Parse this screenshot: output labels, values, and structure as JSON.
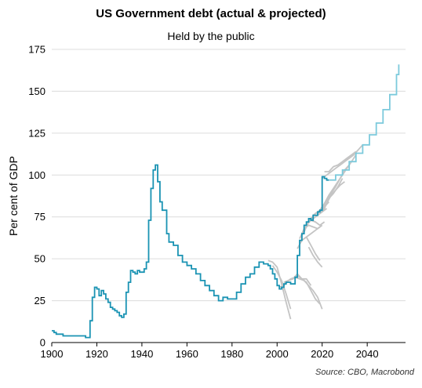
{
  "chart_data": {
    "type": "line",
    "title": "US Government debt (actual & projected)",
    "subtitle": "Held by the public",
    "xlabel": "",
    "ylabel": "Per cent of GDP",
    "source": "Source: CBO, Macrobond",
    "xlim": [
      1900,
      2057
    ],
    "ylim": [
      0,
      175
    ],
    "x_ticks": [
      1900,
      1920,
      1940,
      1960,
      1980,
      2000,
      2020,
      2040
    ],
    "y_ticks": [
      0,
      25,
      50,
      75,
      100,
      125,
      150,
      175
    ],
    "grid": "horizontal",
    "colors": {
      "actual": "#1a93b3",
      "projected": "#7ccadc",
      "past_projections": "#c4c4c4"
    },
    "series": [
      {
        "role": "actual",
        "x": [
          1900,
          1901,
          1902,
          1903,
          1905,
          1910,
          1915,
          1916,
          1917,
          1918,
          1919,
          1920,
          1921,
          1922,
          1923,
          1924,
          1925,
          1926,
          1927,
          1928,
          1929,
          1930,
          1931,
          1932,
          1933,
          1934,
          1935,
          1936,
          1937,
          1938,
          1939,
          1940,
          1941,
          1942,
          1943,
          1944,
          1945,
          1946,
          1947,
          1948,
          1949,
          1950,
          1951,
          1952,
          1954,
          1956,
          1958,
          1960,
          1962,
          1964,
          1966,
          1968,
          1970,
          1972,
          1974,
          1976,
          1978,
          1980,
          1982,
          1984,
          1986,
          1988,
          1990,
          1992,
          1993,
          1994,
          1995,
          1996,
          1997,
          1998,
          1999,
          2000,
          2001,
          2002,
          2003,
          2004,
          2005,
          2006,
          2007,
          2008,
          2009,
          2010,
          2011,
          2012,
          2013,
          2014,
          2015,
          2016,
          2017,
          2018,
          2019,
          2020,
          2021,
          2022,
          2023
        ],
        "y": [
          7,
          6,
          5,
          5,
          4,
          4,
          3,
          3,
          13,
          27,
          33,
          32,
          28,
          31,
          29,
          26,
          24,
          21,
          20,
          19,
          18,
          16,
          15,
          17,
          30,
          36,
          43,
          42,
          41,
          43,
          42,
          42,
          44,
          48,
          73,
          92,
          103,
          106,
          96,
          84,
          79,
          79,
          65,
          60,
          58,
          52,
          48,
          46,
          44,
          41,
          37,
          34,
          31,
          28,
          25,
          27,
          26,
          26,
          30,
          35,
          39,
          41,
          45,
          48,
          48,
          47,
          47,
          46,
          44,
          41,
          38,
          34,
          32,
          33,
          35,
          36,
          36,
          35,
          35,
          39,
          52,
          61,
          65,
          70,
          72,
          74,
          73,
          76,
          76,
          78,
          79,
          99,
          98,
          97,
          97
        ]
      },
      {
        "role": "projected",
        "x": [
          2023,
          2026,
          2029,
          2032,
          2035,
          2038,
          2041,
          2044,
          2047,
          2050,
          2053,
          2054
        ],
        "y": [
          97,
          100,
          103,
          108,
          113,
          118,
          124,
          131,
          139,
          148,
          160,
          166
        ]
      },
      {
        "role": "past_projection",
        "x": [
          1996,
          1998,
          2000,
          2002,
          2004,
          2006
        ],
        "y": [
          49,
          48,
          45,
          35,
          24,
          14
        ]
      },
      {
        "role": "past_projection",
        "x": [
          1998,
          2000,
          2002,
          2004,
          2006
        ],
        "y": [
          46,
          42,
          37,
          29,
          20
        ]
      },
      {
        "role": "past_projection",
        "x": [
          2001,
          2003,
          2005,
          2007,
          2009,
          2011,
          2013,
          2015,
          2017,
          2019
        ],
        "y": [
          33,
          34,
          37,
          38,
          40,
          38,
          36,
          31,
          26,
          23
        ]
      },
      {
        "role": "past_projection",
        "x": [
          2002,
          2004,
          2006,
          2008,
          2010,
          2012,
          2014,
          2016,
          2018,
          2020
        ],
        "y": [
          33,
          36,
          38,
          39,
          38,
          37,
          34,
          31,
          27,
          20
        ]
      },
      {
        "role": "past_projection",
        "x": [
          2003,
          2005,
          2007,
          2009,
          2011,
          2013,
          2015
        ],
        "y": [
          36,
          37,
          38,
          41,
          38,
          38,
          34
        ]
      },
      {
        "role": "past_projection",
        "x": [
          2009,
          2011,
          2013,
          2015,
          2017,
          2019
        ],
        "y": [
          56,
          61,
          63,
          65,
          67,
          69
        ]
      },
      {
        "role": "past_projection",
        "x": [
          2010,
          2012,
          2014,
          2016,
          2018,
          2020
        ],
        "y": [
          62,
          68,
          70,
          69,
          68,
          70
        ]
      },
      {
        "role": "past_projection",
        "x": [
          2011,
          2013,
          2015,
          2017,
          2019,
          2021
        ],
        "y": [
          64,
          70,
          73,
          72,
          70,
          72
        ]
      },
      {
        "role": "past_projection",
        "x": [
          2012,
          2014,
          2016,
          2018,
          2020,
          2022
        ],
        "y": [
          66,
          72,
          74,
          76,
          78,
          80
        ]
      },
      {
        "role": "past_projection",
        "x": [
          2013,
          2015,
          2017,
          2019,
          2021,
          2023
        ],
        "y": [
          70,
          74,
          77,
          79,
          81,
          84
        ]
      },
      {
        "role": "past_projection",
        "x": [
          2013,
          2015,
          2017,
          2019
        ],
        "y": [
          63,
          58,
          53,
          49
        ]
      },
      {
        "role": "past_projection",
        "x": [
          2014,
          2016,
          2018,
          2020
        ],
        "y": [
          57,
          52,
          48,
          45
        ]
      },
      {
        "role": "past_projection",
        "x": [
          2015,
          2017,
          2019,
          2021,
          2023,
          2025,
          2027,
          2029
        ],
        "y": [
          74,
          77,
          78,
          80,
          86,
          89,
          93,
          98
        ]
      },
      {
        "role": "past_projection",
        "x": [
          2016,
          2018,
          2020,
          2022,
          2024,
          2026,
          2028,
          2030
        ],
        "y": [
          76,
          78,
          80,
          83,
          88,
          91,
          94,
          96
        ]
      },
      {
        "role": "past_projection",
        "x": [
          2018,
          2020,
          2022,
          2024,
          2026,
          2028,
          2030,
          2032
        ],
        "y": [
          77,
          80,
          85,
          89,
          93,
          98,
          103,
          106
        ]
      },
      {
        "role": "past_projection",
        "x": [
          2019,
          2021,
          2023,
          2025,
          2027,
          2029,
          2031,
          2033,
          2035
        ],
        "y": [
          79,
          83,
          88,
          92,
          96,
          100,
          104,
          108,
          112
        ]
      },
      {
        "role": "past_projection",
        "x": [
          2020,
          2022,
          2024,
          2026,
          2028,
          2030,
          2032,
          2034,
          2036,
          2038
        ],
        "y": [
          98,
          100,
          102,
          104,
          106,
          108,
          110,
          112,
          115,
          118
        ]
      },
      {
        "role": "past_projection",
        "x": [
          2021,
          2023,
          2025,
          2027,
          2029,
          2031,
          2033,
          2035
        ],
        "y": [
          102,
          102,
          105,
          106,
          108,
          110,
          112,
          114
        ]
      }
    ]
  }
}
